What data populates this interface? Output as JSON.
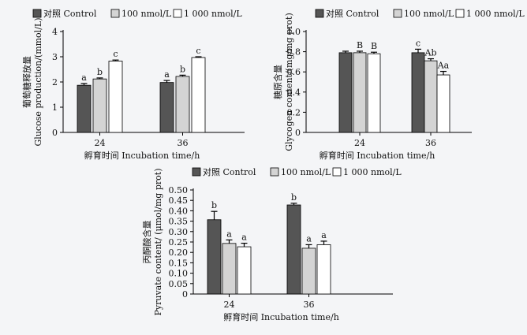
{
  "chart_data": [
    {
      "type": "bar",
      "legend": [
        "对照 Control",
        "100 nmol/L",
        "1 000 nmol/L"
      ],
      "ylabel_cn": "葡萄糖释放量",
      "ylabel_en": "Glucose production/(mmol/L)",
      "xlabel": "孵育时间  Incubation time/h",
      "categories": [
        "24",
        "36"
      ],
      "ylim": [
        0,
        4
      ],
      "yticks": [
        "0",
        "1",
        "2",
        "3",
        "4"
      ],
      "series": [
        {
          "name": "对照 Control",
          "color": "#555555",
          "values": [
            1.87,
            1.98
          ],
          "errors": [
            0.07,
            0.08
          ],
          "labels": [
            "a",
            "a"
          ]
        },
        {
          "name": "100 nmol/L",
          "color": "#d4d4d4",
          "values": [
            2.12,
            2.22
          ],
          "errors": [
            0.04,
            0.05
          ],
          "labels": [
            "b",
            "b"
          ]
        },
        {
          "name": "1 000 nmol/L",
          "color": "#ffffff",
          "values": [
            2.83,
            2.97
          ],
          "errors": [
            0.04,
            0.03
          ],
          "labels": [
            "c",
            "c"
          ]
        }
      ]
    },
    {
      "type": "bar",
      "legend": [
        "对照 Control",
        "100 nmol/L",
        "1 000 nmol/L"
      ],
      "ylabel_cn": "糖原含量",
      "ylabel_en": "Glycogen content/(mg/mg prot)",
      "xlabel": "孵育时间  Incubation time/h",
      "categories": [
        "24",
        "36"
      ],
      "ylim": [
        0,
        1.0
      ],
      "yticks": [
        "0",
        "0.2",
        "0.4",
        "0.6",
        "0.8",
        "1.0"
      ],
      "series": [
        {
          "name": "对照 Control",
          "color": "#555555",
          "values": [
            0.79,
            0.79
          ],
          "errors": [
            0.015,
            0.035
          ],
          "labels": [
            "",
            "c"
          ]
        },
        {
          "name": "100 nmol/L",
          "color": "#d4d4d4",
          "values": [
            0.79,
            0.71
          ],
          "errors": [
            0.015,
            0.02
          ],
          "labels": [
            "B",
            "Ab"
          ]
        },
        {
          "name": "1 000 nmol/L",
          "color": "#ffffff",
          "values": [
            0.78,
            0.57
          ],
          "errors": [
            0.015,
            0.035
          ],
          "labels": [
            "B",
            "Aa"
          ]
        }
      ]
    },
    {
      "type": "bar",
      "legend": [
        "对照 Control",
        "100 nmol/L",
        "1 000 nmol/L"
      ],
      "ylabel_cn": "丙酮酸含量",
      "ylabel_en": "Pyruvate content/ (μmol/mg prot)",
      "xlabel": "孵育时间  Incubation time/h",
      "categories": [
        "24",
        "36"
      ],
      "ylim": [
        0,
        0.5
      ],
      "yticks": [
        "0",
        "0.05",
        "0.10",
        "0.15",
        "0.20",
        "0.25",
        "0.30",
        "0.35",
        "0.40",
        "0.45",
        "0.50"
      ],
      "series": [
        {
          "name": "对照 Control",
          "color": "#555555",
          "values": [
            0.357,
            0.428
          ],
          "errors": [
            0.04,
            0.008
          ],
          "labels": [
            "b",
            "b"
          ]
        },
        {
          "name": "100 nmol/L",
          "color": "#d4d4d4",
          "values": [
            0.243,
            0.22
          ],
          "errors": [
            0.017,
            0.017
          ],
          "labels": [
            "a",
            "a"
          ]
        },
        {
          "name": "1 000 nmol/L",
          "color": "#ffffff",
          "values": [
            0.227,
            0.237
          ],
          "errors": [
            0.017,
            0.017
          ],
          "labels": [
            "a",
            "a"
          ]
        }
      ]
    }
  ]
}
